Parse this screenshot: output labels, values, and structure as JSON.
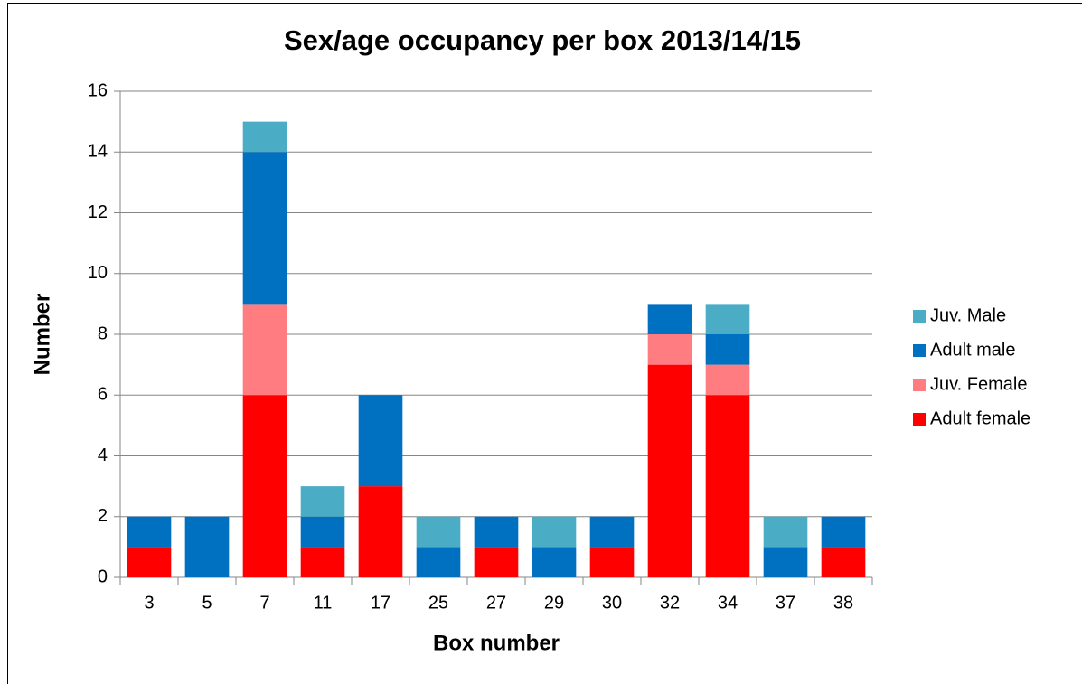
{
  "chart_data": {
    "type": "stacked_bar",
    "title": "Sex/age occupancy per box 2013/14/15",
    "x_label": "Box number",
    "y_label": "Number",
    "categories": [
      "3",
      "5",
      "7",
      "11",
      "17",
      "25",
      "27",
      "29",
      "30",
      "32",
      "34",
      "37",
      "38"
    ],
    "series": [
      {
        "name": "Adult female",
        "color": "#ff0000",
        "values": [
          1,
          0,
          6,
          1,
          3,
          0,
          1,
          0,
          1,
          7,
          6,
          0,
          1
        ]
      },
      {
        "name": "Juv. Female",
        "color": "#ff7c80",
        "values": [
          0,
          0,
          3,
          0,
          0,
          0,
          0,
          0,
          0,
          1,
          1,
          0,
          0
        ]
      },
      {
        "name": "Adult male",
        "color": "#0070c0",
        "values": [
          1,
          2,
          5,
          1,
          3,
          1,
          1,
          1,
          1,
          1,
          1,
          1,
          1
        ]
      },
      {
        "name": "Juv. Male",
        "color": "#4bacc6",
        "values": [
          0,
          0,
          1,
          1,
          0,
          1,
          0,
          1,
          0,
          0,
          1,
          1,
          0
        ]
      }
    ],
    "ylim": [
      0,
      16
    ],
    "yticks": [
      0,
      2,
      4,
      6,
      8,
      10,
      12,
      14,
      16
    ],
    "grid": true,
    "legend": "right"
  }
}
